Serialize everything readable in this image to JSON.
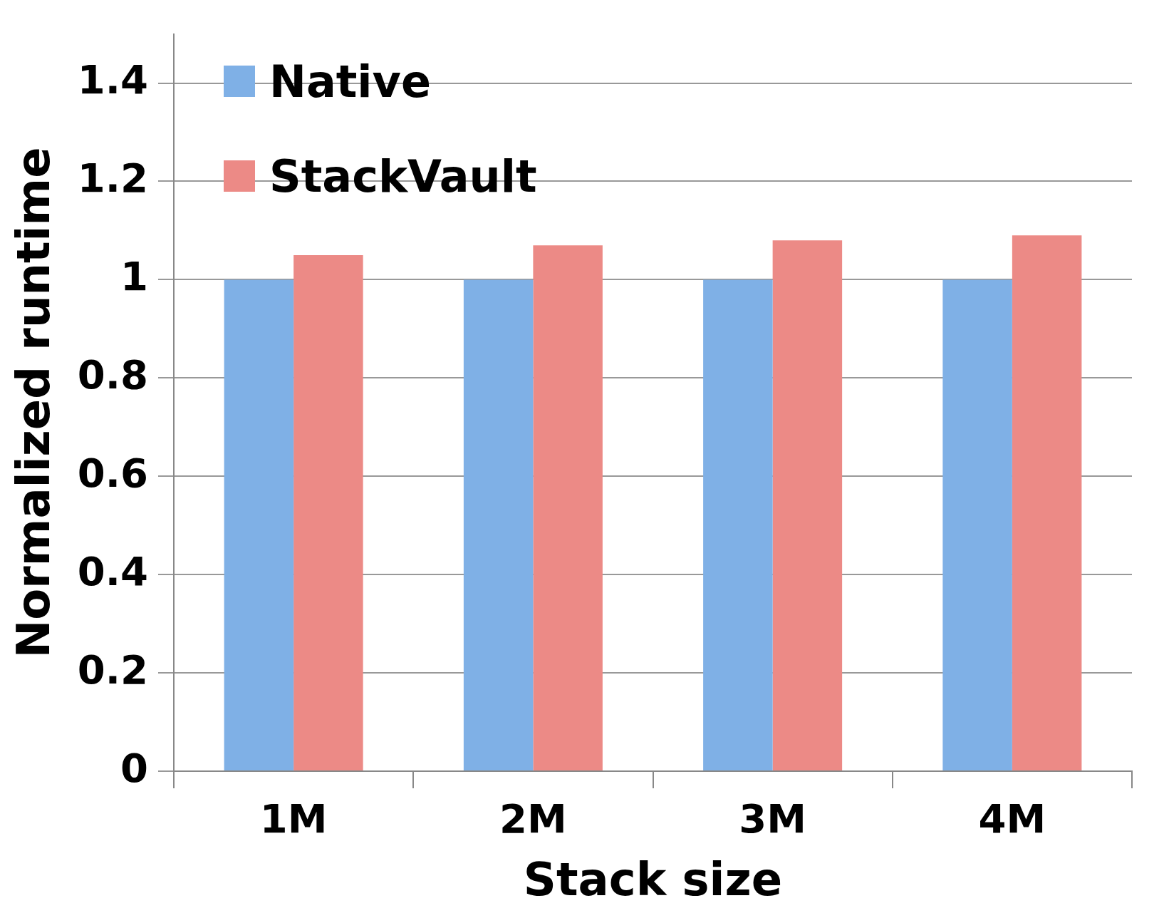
{
  "chart_data": {
    "type": "bar",
    "xlabel": "Stack size",
    "ylabel": "Normalized runtime",
    "categories": [
      "1M",
      "2M",
      "3M",
      "4M"
    ],
    "series": [
      {
        "name": "Native",
        "color": "#7fb0e6",
        "values": [
          1,
          1,
          1,
          1
        ]
      },
      {
        "name": "StackVault",
        "color": "#ec8a86",
        "values": [
          1.05,
          1.07,
          1.08,
          1.09
        ]
      }
    ],
    "ylim": [
      0,
      1.5
    ],
    "yticks": [
      0,
      0.2,
      0.4,
      0.6,
      0.8,
      1,
      1.2,
      1.4
    ],
    "grid": "y",
    "legend": "top left"
  }
}
